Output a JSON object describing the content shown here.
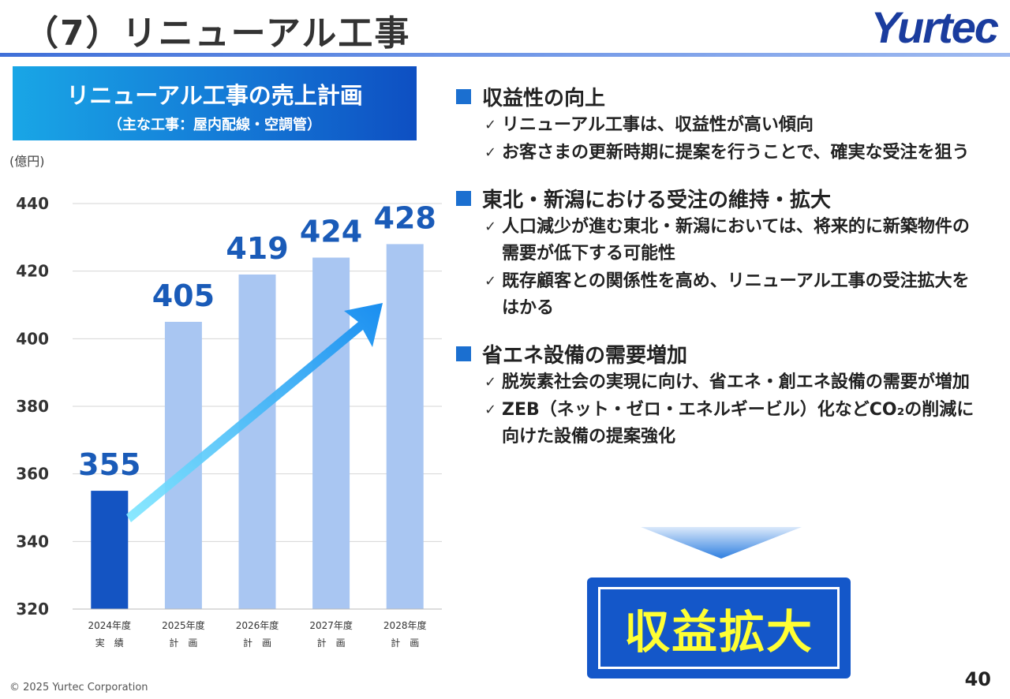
{
  "header": {
    "title": "（7）リニューアル工事",
    "logo": "Yurtec"
  },
  "chart_header": {
    "title": "リニューアル工事の売上計画",
    "subtitle": "（主な工事：屋内配線・空調管）"
  },
  "chart_data": {
    "type": "bar",
    "unit_label": "(億円)",
    "categories": [
      [
        "2024年度",
        "実　績"
      ],
      [
        "2025年度",
        "計　画"
      ],
      [
        "2026年度",
        "計　画"
      ],
      [
        "2027年度",
        "計　画"
      ],
      [
        "2028年度",
        "計　画"
      ]
    ],
    "values": [
      355,
      405,
      419,
      424,
      428
    ],
    "data_labels": [
      "355",
      "405",
      "419",
      "424",
      "428"
    ],
    "ylim": [
      320,
      440
    ],
    "yticks": [
      320,
      340,
      360,
      380,
      400,
      420,
      440
    ],
    "grid": true,
    "colors": {
      "actual": "#1454c2",
      "plan": "#a9c6f2",
      "label": "#1a5bb8",
      "arrow_start": "#7ee7ff",
      "arrow_end": "#1a8ef0"
    }
  },
  "sections": [
    {
      "heading": "収益性の向上",
      "items": [
        "リニューアル工事は、収益性が高い傾向",
        "お客さまの更新時期に提案を行うことで、確実な受注を狙う"
      ]
    },
    {
      "heading": "東北・新潟における受注の維持・拡大",
      "items": [
        "人口減少が進む東北・新潟においては、将来的に新築物件の需要が低下する可能性",
        "既存顧客との関係性を高め、リニューアル工事の受注拡大をはかる"
      ]
    },
    {
      "heading": "省エネ設備の需要増加",
      "items": [
        "脱炭素社会の実現に向け、省エネ・創エネ設備の需要が増加",
        "ZEB（ネット・ゼロ・エネルギービル）化などCO₂の削減に向けた設備の提案強化"
      ]
    }
  ],
  "check_mark": "✓",
  "result": "収益拡大",
  "footer": {
    "copyright": "© 2025 Yurtec Corporation",
    "page": "40"
  }
}
